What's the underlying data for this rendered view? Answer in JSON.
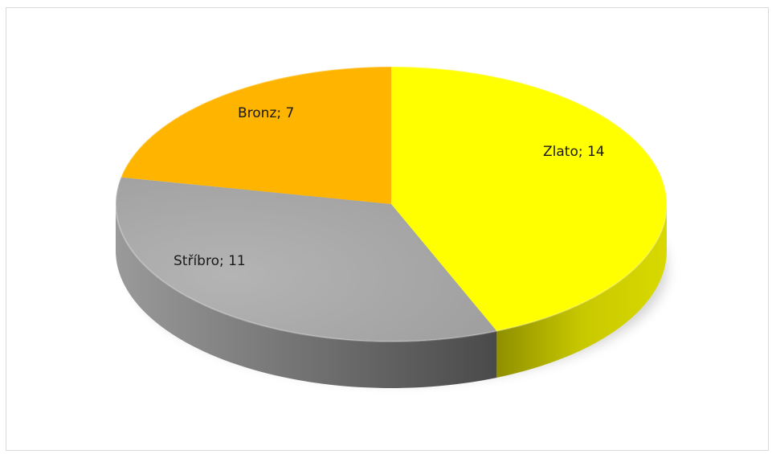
{
  "chart_data": {
    "type": "pie",
    "title": "",
    "categories": [
      "Zlato",
      "Stříbro",
      "Bronz"
    ],
    "values": [
      14,
      11,
      7
    ],
    "data_labels": [
      "Zlato; 14",
      "Stříbro; 11",
      "Bronz; 7"
    ],
    "colors": [
      "#ffff00",
      "#a6a6a6",
      "#ffb400"
    ],
    "legend": "none",
    "style": "3d"
  }
}
